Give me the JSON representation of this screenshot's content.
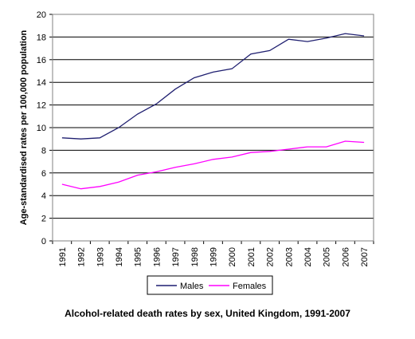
{
  "chart_data": {
    "type": "line",
    "title": "Alcohol-related death rates by sex, United Kingdom, 1991-2007",
    "ylabel": "Age-standardised rates per 100,000 population",
    "xlabel": "",
    "x": [
      "1991",
      "1992",
      "1993",
      "1994",
      "1995",
      "1996",
      "1997",
      "1998",
      "1999",
      "2000",
      "2001",
      "2002",
      "2003",
      "2004",
      "2005",
      "2006",
      "2007"
    ],
    "ylim": [
      0,
      20
    ],
    "yticks": [
      0,
      2,
      4,
      6,
      8,
      10,
      12,
      14,
      16,
      18,
      20
    ],
    "grid": true,
    "legend_position": "bottom",
    "series": [
      {
        "name": "Males",
        "color": "#1F1F70",
        "values": [
          9.1,
          9.0,
          9.1,
          10.0,
          11.2,
          12.1,
          13.4,
          14.4,
          14.9,
          15.2,
          16.5,
          16.8,
          17.8,
          17.6,
          17.9,
          18.3,
          18.1
        ]
      },
      {
        "name": "Females",
        "color": "#FF00FF",
        "values": [
          5.0,
          4.6,
          4.8,
          5.2,
          5.8,
          6.1,
          6.5,
          6.8,
          7.2,
          7.4,
          7.8,
          7.9,
          8.1,
          8.3,
          8.3,
          8.8,
          8.7
        ]
      }
    ]
  }
}
